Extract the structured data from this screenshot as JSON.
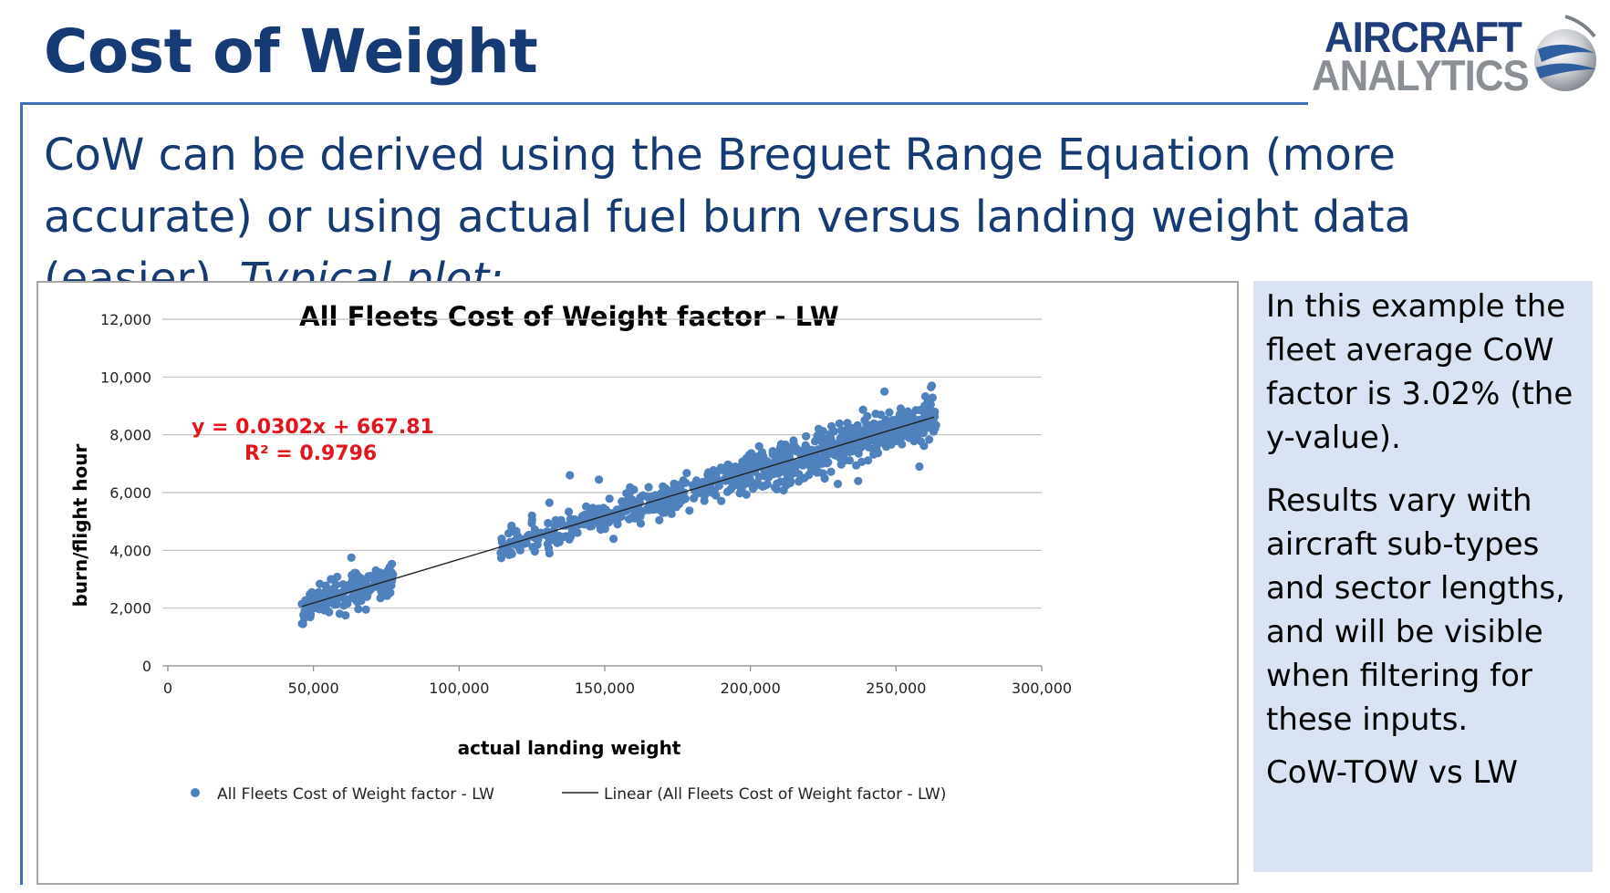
{
  "slide": {
    "title": "Cost of Weight",
    "intro_main": "CoW can be derived using the Breguet Range Equation (more accurate) or using actual fuel burn versus landing weight data (easier). ",
    "intro_italic": "Typical plot:"
  },
  "logo": {
    "line1": "AIRCRAFT",
    "line2": "ANALYTICS"
  },
  "side_panel": {
    "para1": "In this example the fleet average CoW factor is 3.02% (the y-value).",
    "para2": "Results vary with aircraft sub-types and sector lengths, and will be visible when filtering for these inputs.",
    "para3": "CoW-TOW vs LW"
  },
  "colors": {
    "title": "#163a73",
    "points": "#4f81bd",
    "equation": "#e3141b",
    "panel": "#d9e3f3"
  },
  "chart_data": {
    "type": "scatter",
    "title": "All Fleets Cost of Weight factor - LW",
    "xlabel": "actual landing weight",
    "ylabel": "burn/flight hour",
    "xlim": [
      0,
      300000
    ],
    "ylim": [
      0,
      12000
    ],
    "x_ticks": [
      "0",
      "50,000",
      "100,000",
      "150,000",
      "200,000",
      "250,000",
      "300,000"
    ],
    "y_ticks": [
      "0",
      "2,000",
      "4,000",
      "6,000",
      "8,000",
      "10,000",
      "12,000"
    ],
    "grid": "horizontal",
    "legend_position": "bottom",
    "equation": "y = 0.0302x + 667.81",
    "r_squared": "R² = 0.9796",
    "series": [
      {
        "name": "All Fleets Cost of Weight factor - LW",
        "kind": "scatter",
        "clusters": [
          {
            "x_range": [
              46000,
              78000
            ],
            "slope": 0.0302,
            "intercept": 667.81,
            "spread": 300,
            "count": 170
          },
          {
            "x_range": [
              114000,
              200000
            ],
            "slope": 0.0302,
            "intercept": 667.81,
            "spread": 280,
            "count": 330
          },
          {
            "x_range": [
              196000,
              264000
            ],
            "slope": 0.0302,
            "intercept": 667.81,
            "spread": 380,
            "count": 460
          }
        ],
        "outliers": [
          [
            63000,
            3750
          ],
          [
            68000,
            1950
          ],
          [
            61000,
            1750
          ],
          [
            131000,
            5650
          ],
          [
            138000,
            6600
          ],
          [
            148000,
            6450
          ],
          [
            150000,
            5300
          ],
          [
            131000,
            3900
          ],
          [
            203000,
            7600
          ],
          [
            202000,
            7200
          ],
          [
            230000,
            6300
          ],
          [
            237000,
            6400
          ],
          [
            258000,
            6900
          ],
          [
            262000,
            9650
          ],
          [
            246000,
            9500
          ],
          [
            153000,
            4400
          ],
          [
            118000,
            4850
          ],
          [
            219000,
            7250
          ],
          [
            125000,
            5200
          ],
          [
            160000,
            6100
          ]
        ]
      },
      {
        "name": "Linear (All Fleets Cost of Weight factor - LW)",
        "kind": "trendline",
        "slope": 0.0302,
        "intercept": 667.81,
        "x_from": 46000,
        "x_to": 263000
      }
    ]
  }
}
